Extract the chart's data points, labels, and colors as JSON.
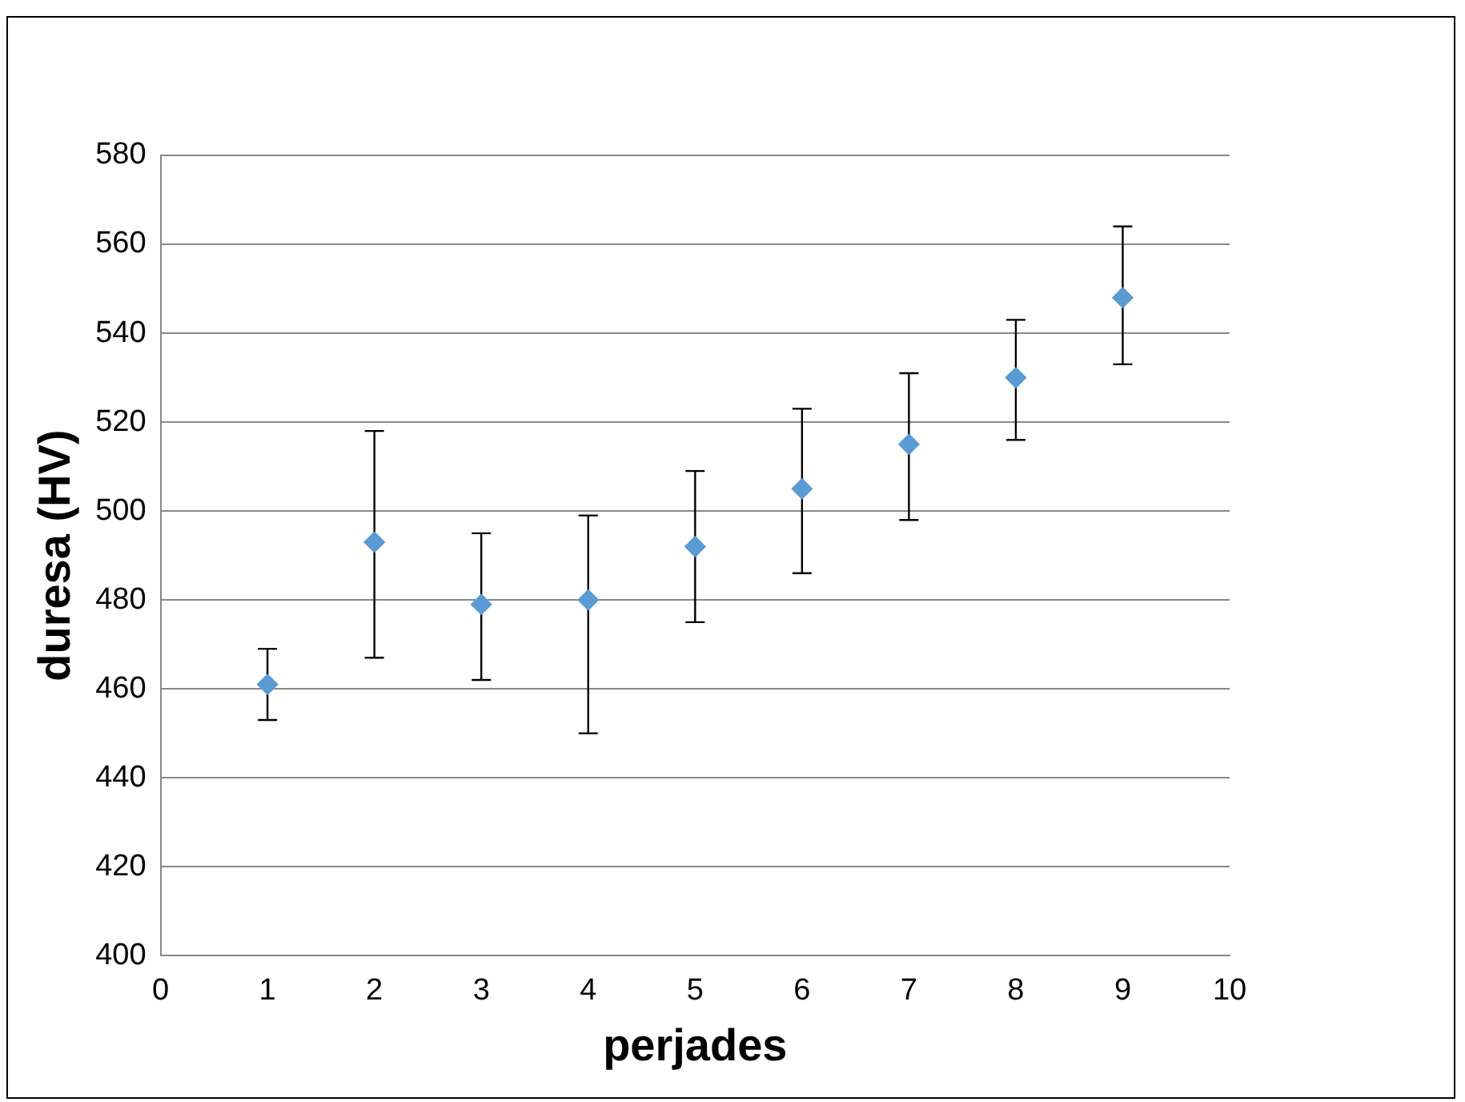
{
  "chart_data": {
    "type": "scatter",
    "xlabel": "perjades",
    "ylabel": "duresa (HV)",
    "x": [
      1,
      2,
      3,
      4,
      5,
      6,
      7,
      8,
      9
    ],
    "values": [
      461,
      493,
      479,
      480,
      492,
      505,
      515,
      530,
      548
    ],
    "errors": [
      [
        453,
        469
      ],
      [
        467,
        518
      ],
      [
        462,
        495
      ],
      [
        450,
        499
      ],
      [
        475,
        509
      ],
      [
        486,
        523
      ],
      [
        498,
        531
      ],
      [
        516,
        543
      ],
      [
        533,
        564
      ]
    ],
    "color": "#5b9bd5",
    "marker": "diamond",
    "xlim": [
      0,
      10
    ],
    "xticks": [
      0,
      1,
      2,
      3,
      4,
      5,
      6,
      7,
      8,
      9,
      10
    ],
    "ylim": [
      400,
      580
    ],
    "yticks": [
      400,
      420,
      440,
      460,
      480,
      500,
      520,
      540,
      560,
      580
    ],
    "grid": "y",
    "legend": false
  }
}
